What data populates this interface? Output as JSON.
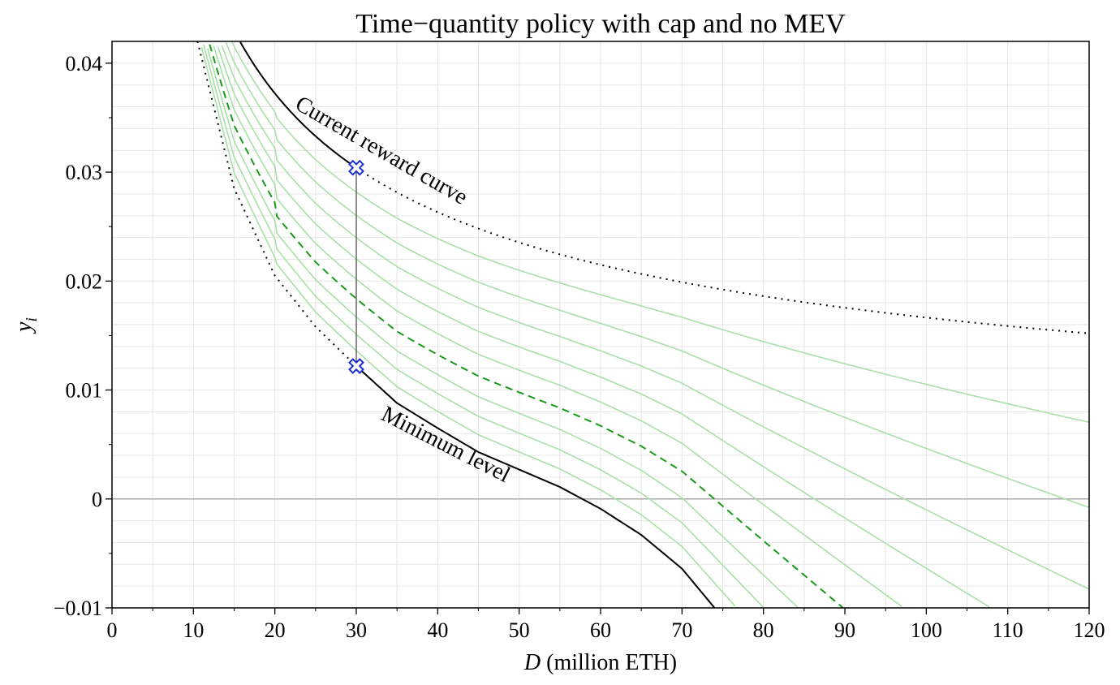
{
  "chart_data": {
    "type": "line",
    "title": "Time−quantity policy with cap and no MEV",
    "xlabel_italic": "D",
    "xlabel_rest": " (million ETH)",
    "ylabel_main": "y",
    "ylabel_sub": "i",
    "xlim": [
      0,
      120
    ],
    "ylim": [
      -0.01,
      0.042
    ],
    "xticks": [
      0,
      10,
      20,
      30,
      40,
      50,
      60,
      70,
      80,
      90,
      100,
      110,
      120
    ],
    "xtick_labels": [
      "0",
      "10",
      "20",
      "30",
      "40",
      "50",
      "60",
      "70",
      "80",
      "90",
      "100",
      "110",
      "120"
    ],
    "yticks": [
      -0.01,
      0,
      0.01,
      0.02,
      0.03,
      0.04
    ],
    "ytick_labels": [
      "−0.01",
      "0",
      "0.01",
      "0.02",
      "0.03",
      "0.04"
    ],
    "grid": true,
    "zero_line": true,
    "colors": {
      "current_curve": "#000000",
      "minimum_level": "#000000",
      "policy_light": "#a8e0a8",
      "policy_highlight": "#1a9a1a",
      "markers": "#1f2fd6",
      "grid": "#e6e6e6",
      "zero_line": "#aaaaaa"
    },
    "reward_curve_coefficient": 0.1665,
    "cap_fraction": 0.4,
    "minimum_level_points": {
      "x": [
        10.5,
        15,
        20,
        25,
        30,
        35,
        40,
        45,
        50,
        55,
        60,
        65,
        70,
        74
      ],
      "y": [
        0.042,
        0.0285,
        0.0205,
        0.0158,
        0.0122,
        0.0088,
        0.0065,
        0.0043,
        0.0027,
        0.0011,
        -0.0009,
        -0.0033,
        -0.0064,
        -0.01
      ]
    },
    "policy_curve_levels": [
      0.1,
      0.2,
      0.3,
      0.4,
      0.5,
      0.6,
      0.7,
      0.8,
      0.9
    ],
    "highlighted_policy_level": 0.4,
    "markers": [
      {
        "x": 30,
        "y": 0.0304
      },
      {
        "x": 30,
        "y": 0.0122
      }
    ],
    "annotations": {
      "current": "Current reward curve",
      "minimum": "Minimum level"
    }
  }
}
